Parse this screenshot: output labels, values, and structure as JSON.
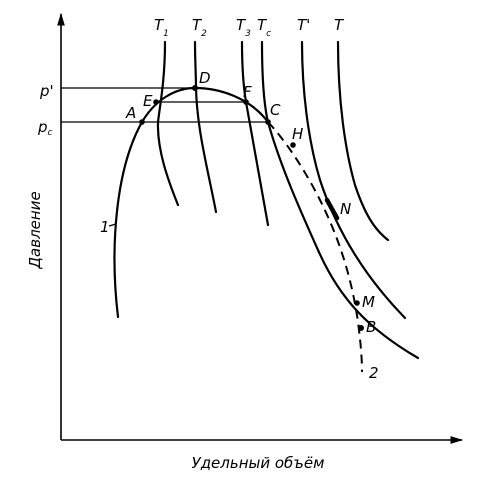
{
  "axes": {
    "ylabel": "Давление",
    "xlabel": "Удельный объём"
  },
  "isotherm_labels": [
    {
      "main": "T",
      "sub": "1"
    },
    {
      "main": "T",
      "sub": "2"
    },
    {
      "main": "T",
      "sub": "3"
    },
    {
      "main": "T",
      "sub": "c"
    },
    {
      "main": "T'",
      "sub": ""
    },
    {
      "main": "T",
      "sub": ""
    }
  ],
  "pressure_labels": [
    {
      "main": "p'",
      "sub": ""
    },
    {
      "main": "p",
      "sub": "c"
    }
  ],
  "point_labels": {
    "A": "A",
    "B": "B",
    "C": "C",
    "D": "D",
    "E": "E",
    "F": "F",
    "H": "H",
    "M": "M",
    "N": "N"
  },
  "curve_labels": {
    "curve1": "1",
    "curve2": "2"
  }
}
